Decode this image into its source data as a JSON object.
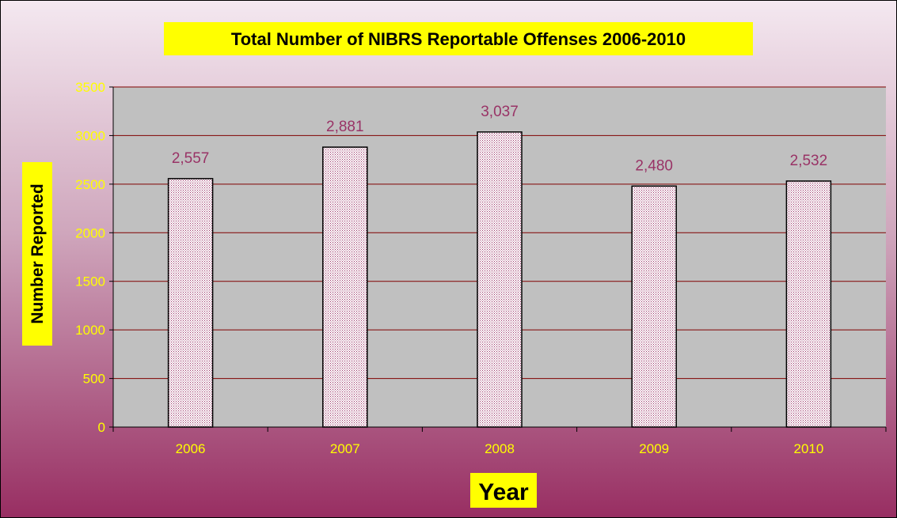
{
  "colors": {
    "bg_top": "#f4e8f0",
    "bg_bottom": "#982e62",
    "plot_area": "#c0c0c0",
    "gridline": "#800000",
    "tick_label": "#ffff00",
    "data_label": "#993366",
    "bar_fill_a": "#ffffff",
    "bar_fill_b": "#993366",
    "label_box": "#ffff00",
    "border": "#000000"
  },
  "chart_data": {
    "type": "bar",
    "title": "Total Number of NIBRS Reportable Offenses 2006-2010",
    "xlabel": "Year",
    "ylabel": "Number Reported",
    "categories": [
      "2006",
      "2007",
      "2008",
      "2009",
      "2010"
    ],
    "values": [
      2557,
      2881,
      3037,
      2480,
      2532
    ],
    "data_labels": [
      "2,557",
      "2,881",
      "3,037",
      "2,480",
      "2,532"
    ],
    "ylim": [
      0,
      3500
    ],
    "yticks": [
      0,
      500,
      1000,
      1500,
      2000,
      2500,
      3000,
      3500
    ],
    "grid": true,
    "legend": "none"
  }
}
